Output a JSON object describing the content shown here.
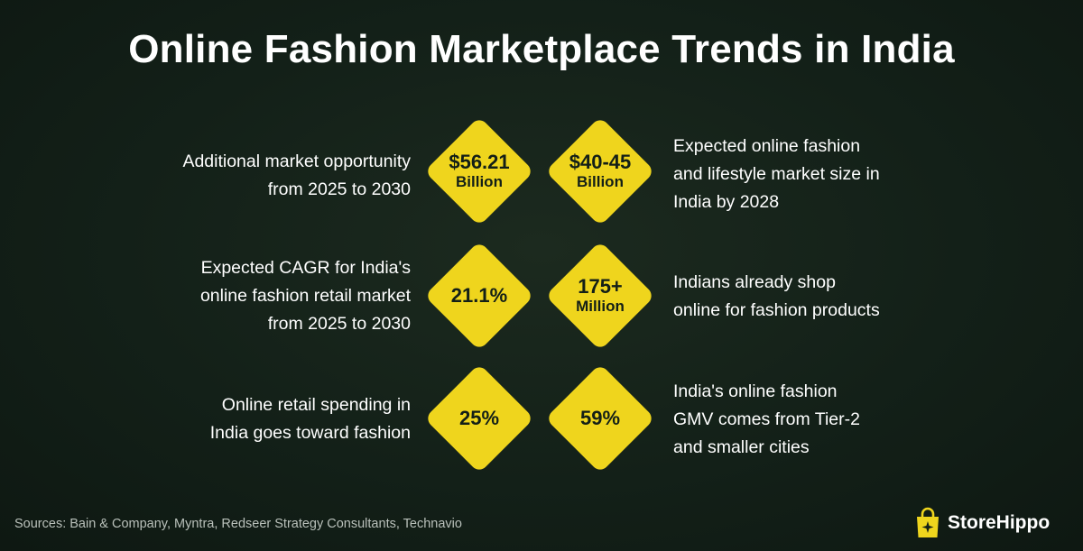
{
  "title": "Online Fashion Marketplace Trends in India",
  "stats": [
    {
      "value": "$56.21",
      "unit": "Billion",
      "description": [
        "Additional market opportunity",
        "from 2025 to 2030"
      ]
    },
    {
      "value": "$40-45",
      "unit": "Billion",
      "description": [
        "Expected online fashion",
        "and lifestyle market size in",
        "India by 2028"
      ]
    },
    {
      "value": "21.1%",
      "unit": "",
      "description": [
        "Expected CAGR for India's",
        "online fashion retail market",
        "from 2025 to 2030"
      ]
    },
    {
      "value": "175+",
      "unit": "Million",
      "description": [
        "Indians already shop",
        "online for fashion products"
      ]
    },
    {
      "value": "25%",
      "unit": "",
      "description": [
        "Online retail spending in",
        "India goes toward fashion"
      ]
    },
    {
      "value": "59%",
      "unit": "",
      "description": [
        "India's online fashion",
        "GMV comes from Tier-2",
        "and smaller cities"
      ]
    }
  ],
  "sources": "Sources: Bain & Company, Myntra, Redseer Strategy Consultants, Technavio",
  "brand": {
    "name": "StoreHippo",
    "icon": "shopping-bag-sparkle-icon",
    "accent": "#efd51d"
  },
  "colors": {
    "diamond": "#efd51d",
    "background": "#132018",
    "text": "#ffffff"
  }
}
